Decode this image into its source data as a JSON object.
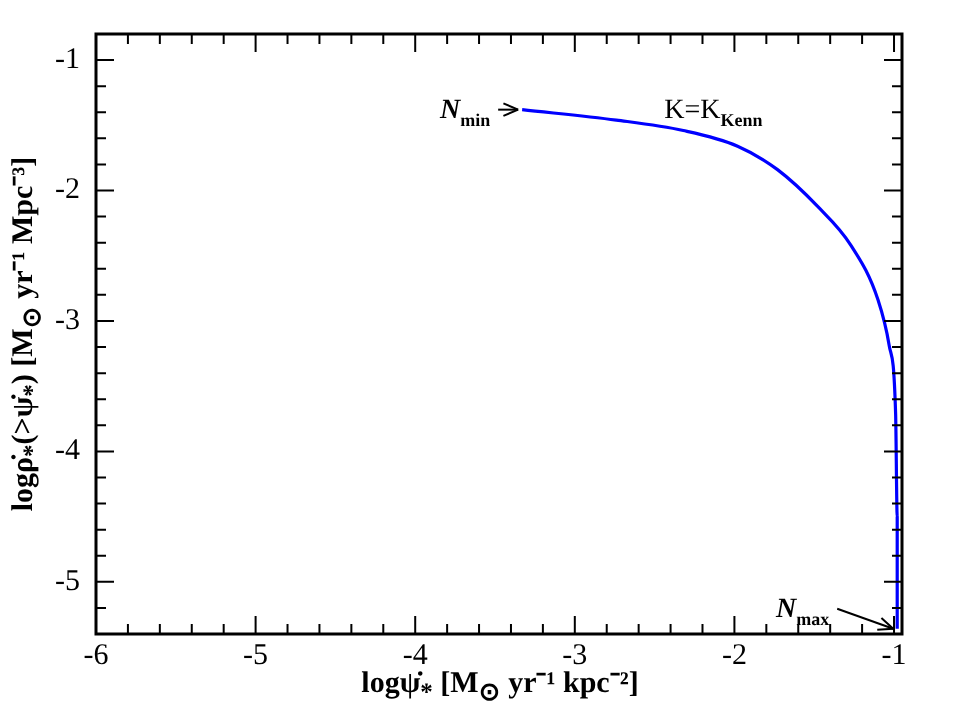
{
  "chart_data": {
    "type": "line",
    "xlabel": "logψ̇$_{*}$ [M$_{⊙}$ yr⁻¹ kpc⁻²]",
    "ylabel": "logρ̇$_{*}$(>ψ̇$_{*}$) [M$_{⊙}$ yr⁻¹ Mpc⁻³]",
    "x": [
      -3.33,
      -2.74,
      -2.32,
      -1.98,
      -1.73,
      -1.48,
      -1.27,
      -1.1,
      -1.03,
      -0.99,
      -0.98,
      -0.98
    ],
    "series": [
      {
        "color": "#0000ff",
        "values": [
          -1.38,
          -1.46,
          -1.54,
          -1.66,
          -1.84,
          -2.12,
          -2.42,
          -2.84,
          -3.19,
          -3.71,
          -4.5,
          -5.36
        ]
      }
    ],
    "xlim": [
      -6,
      -0.95
    ],
    "ylim": [
      -5.4,
      -0.8
    ],
    "xticks": [
      -6,
      {
        "value": -5.8,
        "label": null
      },
      {
        "value": -5.6,
        "label": null
      },
      {
        "value": -5.4,
        "label": null
      },
      {
        "value": -5.2,
        "label": null
      },
      -5,
      {
        "value": -4.8,
        "label": null
      },
      {
        "value": -4.6,
        "label": null
      },
      {
        "value": -4.4,
        "label": null
      },
      {
        "value": -4.2,
        "label": null
      },
      -4,
      {
        "value": -3.8,
        "label": null
      },
      {
        "value": -3.6,
        "label": null
      },
      {
        "value": -3.4,
        "label": null
      },
      {
        "value": -3.2,
        "label": null
      },
      -3,
      {
        "value": -2.8,
        "label": null
      },
      {
        "value": -2.6,
        "label": null
      },
      {
        "value": -2.4,
        "label": null
      },
      {
        "value": -2.2,
        "label": null
      },
      -2,
      {
        "value": -1.8,
        "label": null
      },
      {
        "value": -1.6,
        "label": null
      },
      {
        "value": -1.4,
        "label": null
      },
      {
        "value": -1.2,
        "label": null
      },
      -1
    ],
    "yticks": [
      {
        "value": -5.4,
        "label": null
      },
      {
        "value": -5.2,
        "label": null
      },
      -5,
      {
        "value": -4.8,
        "label": null
      },
      {
        "value": -4.6,
        "label": null
      },
      {
        "value": -4.4,
        "label": null
      },
      {
        "value": -4.2,
        "label": null
      },
      -4,
      {
        "value": -3.8,
        "label": null
      },
      {
        "value": -3.6,
        "label": null
      },
      {
        "value": -3.4,
        "label": null
      },
      {
        "value": -3.2,
        "label": null
      },
      -3,
      {
        "value": -2.8,
        "label": null
      },
      {
        "value": -2.6,
        "label": null
      },
      {
        "value": -2.4,
        "label": null
      },
      {
        "value": -2.2,
        "label": null
      },
      -2,
      {
        "value": -1.8,
        "label": null
      },
      {
        "value": -1.6,
        "label": null
      },
      {
        "value": -1.4,
        "label": null
      },
      {
        "value": -1.2,
        "label": null
      },
      -1,
      {
        "value": -0.8,
        "label": null
      }
    ],
    "annotations": [
      {
        "text": "N$_{min}$",
        "x": -3.33,
        "y": -1.38
      },
      "K=K$_{Kenn}$",
      {
        "text": "N$_{max}$",
        "x": -0.98,
        "y": -5.36
      }
    ],
    "legend": false,
    "grid": false
  }
}
